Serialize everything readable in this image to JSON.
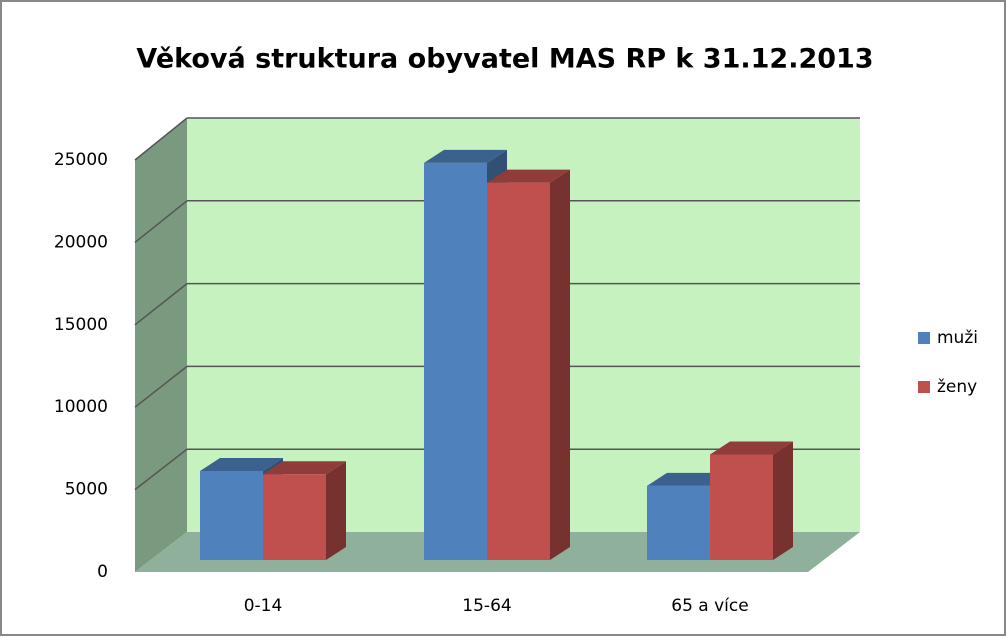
{
  "chart_data": {
    "type": "bar3d",
    "title": "Věková struktura obyvatel MAS RP k 31.12.2013",
    "categories": [
      "0-14",
      "15-64",
      "65 a více"
    ],
    "series": [
      {
        "name": "muži",
        "color": "#4f81bd",
        "values": [
          5400,
          24100,
          4500
        ]
      },
      {
        "name": "ženy",
        "color": "#c0504d",
        "values": [
          5200,
          22900,
          6400
        ]
      }
    ],
    "ylim": [
      0,
      25000
    ],
    "yticks": [
      0,
      5000,
      10000,
      15000,
      20000,
      25000
    ],
    "grid": true,
    "legend": "right"
  }
}
